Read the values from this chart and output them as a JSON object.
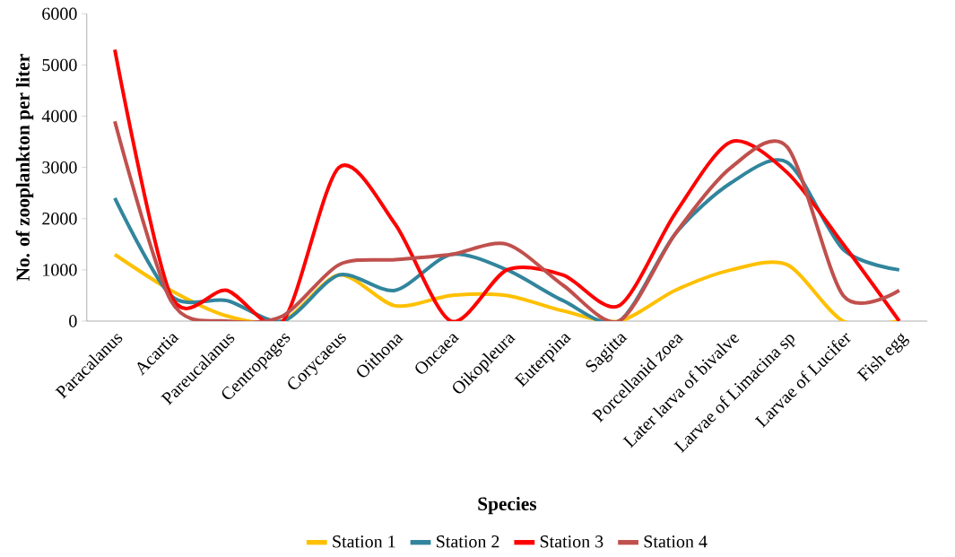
{
  "chart_data": {
    "type": "line",
    "xlabel": "Species",
    "ylabel": "No. of zooplankton per liter",
    "categories": [
      "Paracalanus",
      "Acartia",
      "Pareucalanus",
      "Centropages",
      "Corycaeus",
      "Oithona",
      "Oncaea",
      "Oikopleura",
      "Euterpina",
      "Sagitta",
      "Porcellanid zoea",
      "Later larva of bivalve",
      "Larvae of Limacina sp",
      "Larvae of Lucifer",
      "Fish egg"
    ],
    "series": [
      {
        "name": "Station 1",
        "color": "#ffc000",
        "values": [
          1300,
          600,
          100,
          0,
          900,
          300,
          500,
          500,
          200,
          0,
          600,
          1000,
          1100,
          0,
          0
        ]
      },
      {
        "name": "Station 2",
        "color": "#31859c",
        "values": [
          2400,
          500,
          400,
          0,
          900,
          600,
          1300,
          1000,
          400,
          0,
          1700,
          2700,
          3100,
          1400,
          1000
        ]
      },
      {
        "name": "Station 3",
        "color": "#ff0000",
        "values": [
          5300,
          500,
          600,
          0,
          3000,
          1900,
          0,
          1000,
          900,
          300,
          2100,
          3500,
          2900,
          1500,
          0
        ]
      },
      {
        "name": "Station 4",
        "color": "#c0504d",
        "values": [
          3900,
          400,
          0,
          100,
          1100,
          1200,
          1300,
          1500,
          700,
          0,
          1700,
          3000,
          3400,
          500,
          600
        ]
      }
    ],
    "ylim": [
      0,
      6000
    ],
    "yticks": [
      0,
      1000,
      2000,
      3000,
      4000,
      5000,
      6000
    ],
    "legend": "bottom",
    "grid": false,
    "marker": "none",
    "line_style": "solid"
  }
}
